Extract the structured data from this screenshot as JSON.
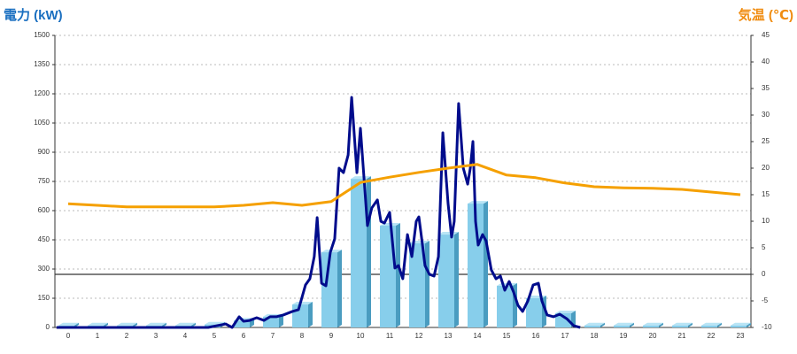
{
  "chart_data": {
    "type": "bar",
    "y_label": "電力 (kW)",
    "y2_label": "気温 (℃)",
    "categories": [
      "0",
      "1",
      "2",
      "3",
      "4",
      "5",
      "6",
      "7",
      "8",
      "9",
      "10",
      "11",
      "12",
      "13",
      "14",
      "15",
      "16",
      "17",
      "18",
      "19",
      "20",
      "21",
      "22",
      "23"
    ],
    "series": [
      {
        "type": "bar",
        "color": "#87ceeb",
        "values": [
          10,
          10,
          10,
          10,
          10,
          15,
          35,
          55,
          118,
          386,
          763,
          523,
          432,
          477,
          636,
          214,
          150,
          73,
          10,
          10,
          10,
          10,
          10,
          10
        ]
      },
      {
        "type": "line",
        "color": "#000c8c",
        "x": [
          -0.4,
          4.79,
          5.39,
          5.61,
          5.85,
          6.0,
          6.21,
          6.45,
          6.7,
          6.91,
          7.12,
          7.36,
          7.67,
          7.88,
          8.12,
          8.27,
          8.42,
          8.52,
          8.67,
          8.82,
          8.97,
          9.12,
          9.27,
          9.42,
          9.58,
          9.7,
          9.88,
          10.0,
          10.12,
          10.24,
          10.39,
          10.58,
          10.7,
          10.82,
          11.0,
          11.18,
          11.3,
          11.45,
          11.61,
          11.76,
          11.91,
          12.0,
          12.09,
          12.21,
          12.36,
          12.52,
          12.67,
          12.82,
          13.0,
          13.12,
          13.21,
          13.36,
          13.52,
          13.67,
          13.76,
          13.85,
          13.94,
          14.03,
          14.18,
          14.3,
          14.48,
          14.64,
          14.79,
          14.94,
          15.09,
          15.24,
          15.39,
          15.55,
          15.73,
          15.91,
          16.09,
          16.21,
          16.39,
          16.61,
          16.82,
          17.06,
          17.3,
          17.52
        ],
        "values": [
          0,
          0,
          18,
          0,
          55,
          32,
          36,
          50,
          36,
          55,
          55,
          64,
          82,
          91,
          218,
          250,
          364,
          564,
          227,
          214,
          386,
          455,
          818,
          795,
          886,
          1182,
          795,
          1023,
          773,
          523,
          614,
          655,
          545,
          536,
          591,
          305,
          318,
          250,
          477,
          364,
          545,
          568,
          464,
          318,
          273,
          264,
          364,
          1000,
          636,
          464,
          545,
          1150,
          818,
          736,
          818,
          955,
          545,
          423,
          477,
          445,
          295,
          250,
          264,
          191,
          236,
          182,
          114,
          82,
          136,
          218,
          227,
          136,
          64,
          55,
          68,
          45,
          9,
          0
        ]
      },
      {
        "type": "line",
        "color": "#f5a000",
        "axis": "y2",
        "values": [
          13.3,
          13.0,
          12.7,
          12.7,
          12.7,
          12.7,
          13.0,
          13.5,
          13.0,
          13.7,
          17.3,
          18.3,
          19.2,
          20.0,
          20.7,
          18.7,
          18.2,
          17.2,
          16.5,
          16.3,
          16.2,
          16.0,
          15.5,
          15.0
        ]
      }
    ],
    "ylim": [
      0,
      1500
    ],
    "yticks": [
      0,
      150,
      300,
      450,
      600,
      750,
      900,
      1050,
      1200,
      1350,
      1500
    ],
    "y2lim": [
      -10,
      45
    ],
    "y2ticks": [
      -10,
      -5,
      0,
      5,
      10,
      15,
      20,
      25,
      30,
      35,
      40,
      45
    ],
    "grid": true
  }
}
